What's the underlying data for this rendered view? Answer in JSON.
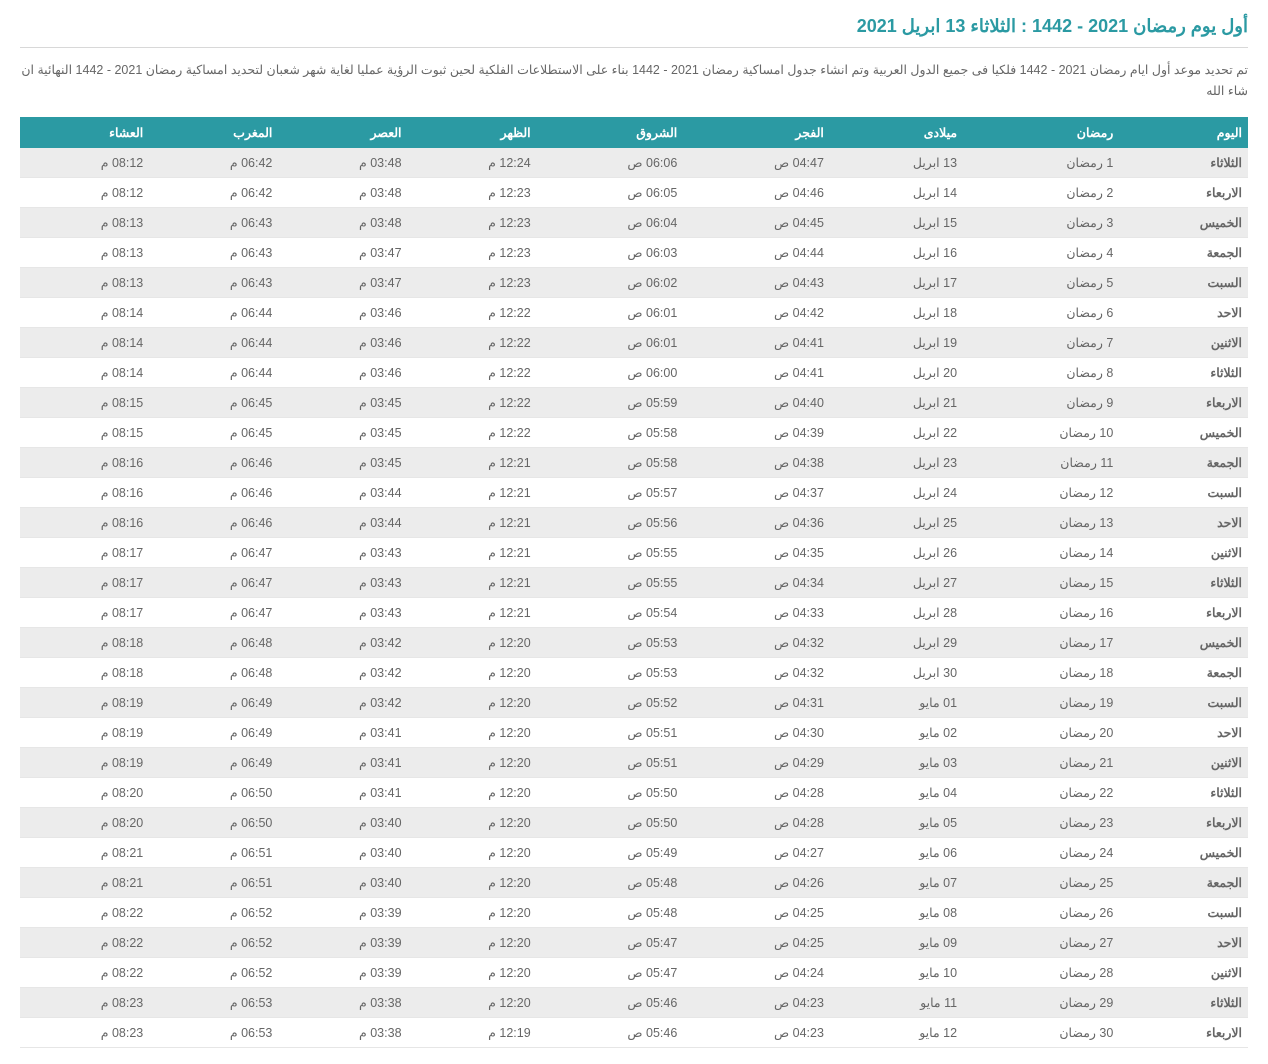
{
  "title": "أول يوم رمضان 2021 - 1442 : الثلاثاء 13 ابريل 2021",
  "description": "تم تحديد موعد أول ايام رمضان 2021 - 1442 فلكيا فى جميع الدول العربية وتم انشاء جدول امساكية رمضان 2021 - 1442 بناء على الاستطلاعات الفلكية لحين ثبوت الرؤية عمليا لغاية شهر شعبان لتحديد امساكية رمضان 2021 - 1442 النهائية ان شاء الله",
  "colors": {
    "accent": "#2b9aa3",
    "header_text": "#ffffff",
    "row_odd": "#ececec",
    "row_even": "#ffffff",
    "border": "#e6e6e6",
    "text": "#666666",
    "title_border": "#d8d8d8"
  },
  "table": {
    "columns": [
      "اليوم",
      "رمضان",
      "ميلادى",
      "الفجر",
      "الشروق",
      "الظهر",
      "العصر",
      "المغرب",
      "العشاء"
    ],
    "rows": [
      [
        "الثلاثاء",
        "1 رمضان",
        "13 ابريل",
        "04:47 ص",
        "06:06 ص",
        "12:24 م",
        "03:48 م",
        "06:42 م",
        "08:12 م"
      ],
      [
        "الاربعاء",
        "2 رمضان",
        "14 ابريل",
        "04:46 ص",
        "06:05 ص",
        "12:23 م",
        "03:48 م",
        "06:42 م",
        "08:12 م"
      ],
      [
        "الخميس",
        "3 رمضان",
        "15 ابريل",
        "04:45 ص",
        "06:04 ص",
        "12:23 م",
        "03:48 م",
        "06:43 م",
        "08:13 م"
      ],
      [
        "الجمعة",
        "4 رمضان",
        "16 ابريل",
        "04:44 ص",
        "06:03 ص",
        "12:23 م",
        "03:47 م",
        "06:43 م",
        "08:13 م"
      ],
      [
        "السبت",
        "5 رمضان",
        "17 ابريل",
        "04:43 ص",
        "06:02 ص",
        "12:23 م",
        "03:47 م",
        "06:43 م",
        "08:13 م"
      ],
      [
        "الاحد",
        "6 رمضان",
        "18 ابريل",
        "04:42 ص",
        "06:01 ص",
        "12:22 م",
        "03:46 م",
        "06:44 م",
        "08:14 م"
      ],
      [
        "الاثنين",
        "7 رمضان",
        "19 ابريل",
        "04:41 ص",
        "06:01 ص",
        "12:22 م",
        "03:46 م",
        "06:44 م",
        "08:14 م"
      ],
      [
        "الثلاثاء",
        "8 رمضان",
        "20 ابريل",
        "04:41 ص",
        "06:00 ص",
        "12:22 م",
        "03:46 م",
        "06:44 م",
        "08:14 م"
      ],
      [
        "الاربعاء",
        "9 رمضان",
        "21 ابريل",
        "04:40 ص",
        "05:59 ص",
        "12:22 م",
        "03:45 م",
        "06:45 م",
        "08:15 م"
      ],
      [
        "الخميس",
        "10 رمضان",
        "22 ابريل",
        "04:39 ص",
        "05:58 ص",
        "12:22 م",
        "03:45 م",
        "06:45 م",
        "08:15 م"
      ],
      [
        "الجمعة",
        "11 رمضان",
        "23 ابريل",
        "04:38 ص",
        "05:58 ص",
        "12:21 م",
        "03:45 م",
        "06:46 م",
        "08:16 م"
      ],
      [
        "السبت",
        "12 رمضان",
        "24 ابريل",
        "04:37 ص",
        "05:57 ص",
        "12:21 م",
        "03:44 م",
        "06:46 م",
        "08:16 م"
      ],
      [
        "الاحد",
        "13 رمضان",
        "25 ابريل",
        "04:36 ص",
        "05:56 ص",
        "12:21 م",
        "03:44 م",
        "06:46 م",
        "08:16 م"
      ],
      [
        "الاثنين",
        "14 رمضان",
        "26 ابريل",
        "04:35 ص",
        "05:55 ص",
        "12:21 م",
        "03:43 م",
        "06:47 م",
        "08:17 م"
      ],
      [
        "الثلاثاء",
        "15 رمضان",
        "27 ابريل",
        "04:34 ص",
        "05:55 ص",
        "12:21 م",
        "03:43 م",
        "06:47 م",
        "08:17 م"
      ],
      [
        "الاربعاء",
        "16 رمضان",
        "28 ابريل",
        "04:33 ص",
        "05:54 ص",
        "12:21 م",
        "03:43 م",
        "06:47 م",
        "08:17 م"
      ],
      [
        "الخميس",
        "17 رمضان",
        "29 ابريل",
        "04:32 ص",
        "05:53 ص",
        "12:20 م",
        "03:42 م",
        "06:48 م",
        "08:18 م"
      ],
      [
        "الجمعة",
        "18 رمضان",
        "30 ابريل",
        "04:32 ص",
        "05:53 ص",
        "12:20 م",
        "03:42 م",
        "06:48 م",
        "08:18 م"
      ],
      [
        "السبت",
        "19 رمضان",
        "01 مايو",
        "04:31 ص",
        "05:52 ص",
        "12:20 م",
        "03:42 م",
        "06:49 م",
        "08:19 م"
      ],
      [
        "الاحد",
        "20 رمضان",
        "02 مايو",
        "04:30 ص",
        "05:51 ص",
        "12:20 م",
        "03:41 م",
        "06:49 م",
        "08:19 م"
      ],
      [
        "الاثنين",
        "21 رمضان",
        "03 مايو",
        "04:29 ص",
        "05:51 ص",
        "12:20 م",
        "03:41 م",
        "06:49 م",
        "08:19 م"
      ],
      [
        "الثلاثاء",
        "22 رمضان",
        "04 مايو",
        "04:28 ص",
        "05:50 ص",
        "12:20 م",
        "03:41 م",
        "06:50 م",
        "08:20 م"
      ],
      [
        "الاربعاء",
        "23 رمضان",
        "05 مايو",
        "04:28 ص",
        "05:50 ص",
        "12:20 م",
        "03:40 م",
        "06:50 م",
        "08:20 م"
      ],
      [
        "الخميس",
        "24 رمضان",
        "06 مايو",
        "04:27 ص",
        "05:49 ص",
        "12:20 م",
        "03:40 م",
        "06:51 م",
        "08:21 م"
      ],
      [
        "الجمعة",
        "25 رمضان",
        "07 مايو",
        "04:26 ص",
        "05:48 ص",
        "12:20 م",
        "03:40 م",
        "06:51 م",
        "08:21 م"
      ],
      [
        "السبت",
        "26 رمضان",
        "08 مايو",
        "04:25 ص",
        "05:48 ص",
        "12:20 م",
        "03:39 م",
        "06:52 م",
        "08:22 م"
      ],
      [
        "الاحد",
        "27 رمضان",
        "09 مايو",
        "04:25 ص",
        "05:47 ص",
        "12:20 م",
        "03:39 م",
        "06:52 م",
        "08:22 م"
      ],
      [
        "الاثنين",
        "28 رمضان",
        "10 مايو",
        "04:24 ص",
        "05:47 ص",
        "12:20 م",
        "03:39 م",
        "06:52 م",
        "08:22 م"
      ],
      [
        "الثلاثاء",
        "29 رمضان",
        "11 مايو",
        "04:23 ص",
        "05:46 ص",
        "12:20 م",
        "03:38 م",
        "06:53 م",
        "08:23 م"
      ],
      [
        "الاربعاء",
        "30 رمضان",
        "12 مايو",
        "04:23 ص",
        "05:46 ص",
        "12:19 م",
        "03:38 م",
        "06:53 م",
        "08:23 م"
      ]
    ]
  }
}
